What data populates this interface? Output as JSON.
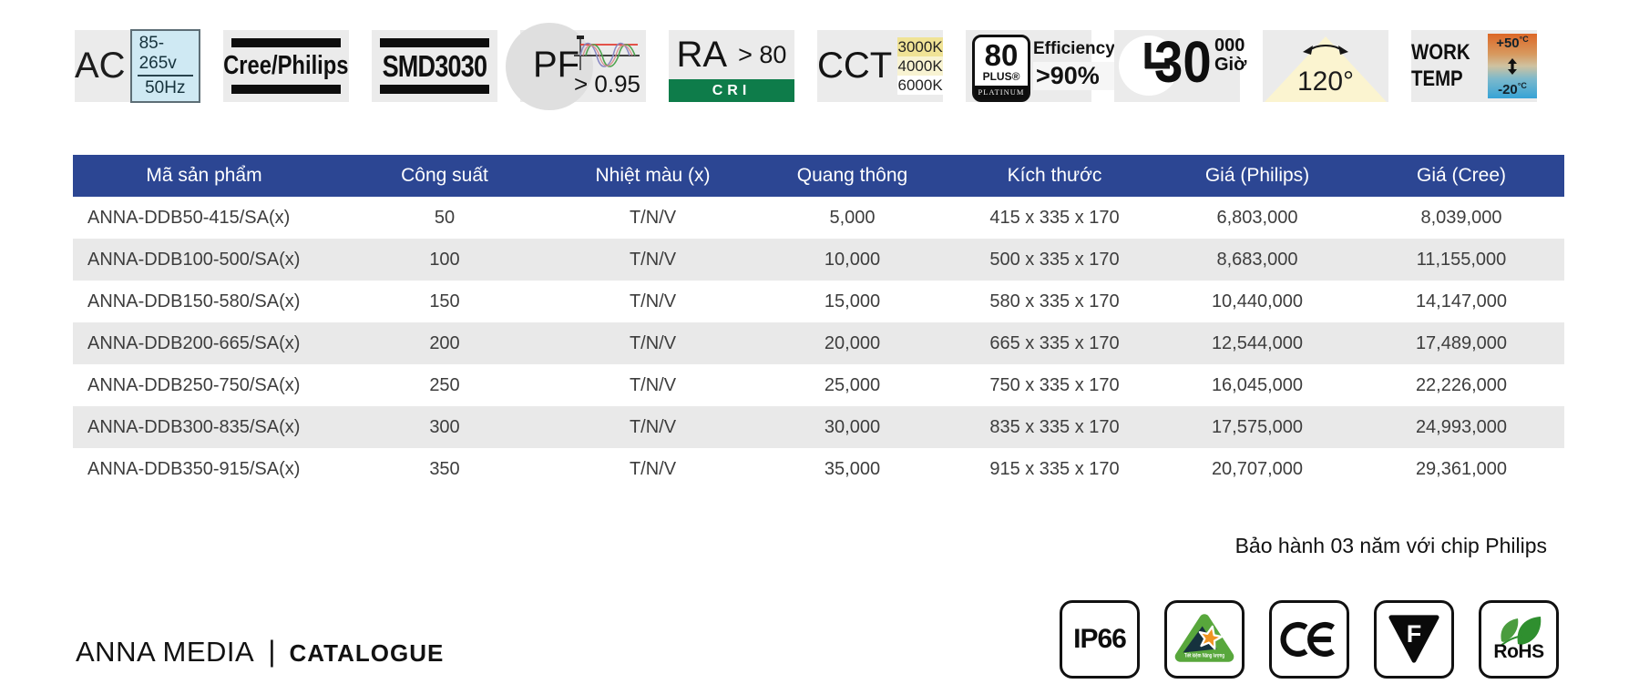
{
  "spec_badges": {
    "ac": {
      "label": "AC",
      "voltage": "85-265v",
      "frequency": "50Hz"
    },
    "chip_brand": {
      "label": "Cree/Philips"
    },
    "led_type": {
      "label": "SMD3030"
    },
    "power_factor": {
      "label": "PF",
      "value": "> 0.95"
    },
    "cri": {
      "label": "RA",
      "value": "> 80",
      "band": "CRI"
    },
    "cct": {
      "label": "CCT",
      "options": [
        "3000K",
        "4000K",
        "6000K"
      ]
    },
    "efficiency": {
      "number": "80",
      "plus": "PLUS®",
      "tier": "PLATINUM",
      "label": "Efficiency",
      "value": ">90%"
    },
    "lifetime": {
      "big": "30",
      "zeros": "000",
      "unit": "Giờ"
    },
    "beam_angle": {
      "value": "120°"
    },
    "work_temp": {
      "line1": "WORK",
      "line2": "TEMP",
      "max": "+50",
      "min": "-20",
      "unit": "°C"
    }
  },
  "table": {
    "columns": [
      "Mã sản phẩm",
      "Công suất",
      "Nhiệt màu (x)",
      "Quang thông",
      "Kích thước",
      "Giá (Philips)",
      "Giá (Cree)"
    ],
    "rows": [
      [
        "ANNA-DDB50-415/SA(x)",
        "50",
        "T/N/V",
        "5,000",
        "415 x 335 x 170",
        "6,803,000",
        "8,039,000"
      ],
      [
        "ANNA-DDB100-500/SA(x)",
        "100",
        "T/N/V",
        "10,000",
        "500 x 335 x 170",
        "8,683,000",
        "11,155,000"
      ],
      [
        "ANNA-DDB150-580/SA(x)",
        "150",
        "T/N/V",
        "15,000",
        "580 x 335 x 170",
        "10,440,000",
        "14,147,000"
      ],
      [
        "ANNA-DDB200-665/SA(x)",
        "200",
        "T/N/V",
        "20,000",
        "665 x 335 x 170",
        "12,544,000",
        "17,489,000"
      ],
      [
        "ANNA-DDB250-750/SA(x)",
        "250",
        "T/N/V",
        "25,000",
        "750 x 335 x 170",
        "16,045,000",
        "22,226,000"
      ],
      [
        "ANNA-DDB300-835/SA(x)",
        "300",
        "T/N/V",
        "30,000",
        "835 x 335 x 170",
        "17,575,000",
        "24,993,000"
      ],
      [
        "ANNA-DDB350-915/SA(x)",
        "350",
        "T/N/V",
        "35,000",
        "915 x 335 x 170",
        "20,707,000",
        "29,361,000"
      ]
    ]
  },
  "warranty_note": "Bảo hành 03 năm với chip Philips",
  "footer": {
    "brand": "ANNA MEDIA",
    "separator": "|",
    "label": "CATALOGUE"
  },
  "cert_badges": {
    "ip_rating": "IP66",
    "energy_label": "Tiết kiệm Năng lượng",
    "ce": "CE",
    "f_mark": "F",
    "rohs": "RoHS"
  },
  "colors": {
    "header_bg": "#2c4693",
    "row_alt_bg": "#e9e9e9",
    "badge_bg": "#ebebeb",
    "cri_green": "#0e7c4a",
    "energy_green": "#58a73c",
    "star_orange": "#ef9422",
    "cct_3000k": "#f0e396",
    "cct_4000k": "#f8f3d2",
    "cct_6000k": "#ffffff",
    "temp_hot": "#dd6827",
    "temp_cold": "#36a3d6"
  }
}
